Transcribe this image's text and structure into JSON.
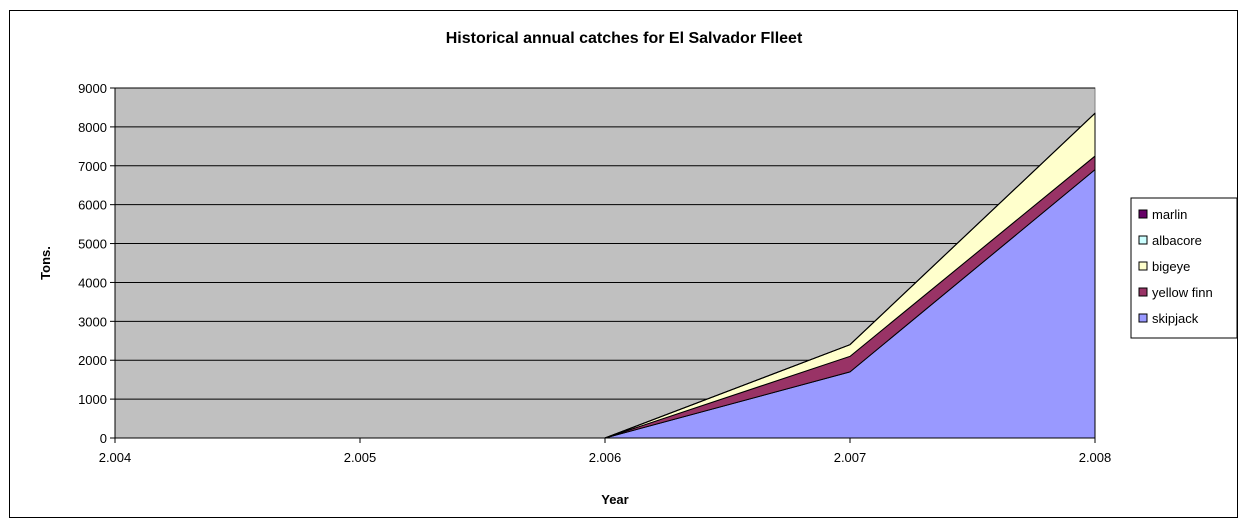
{
  "chart_data": {
    "type": "area",
    "stacked": true,
    "title": "Historical annual catches for El Salvador Flleet",
    "xlabel": "Year",
    "ylabel": "Tons.",
    "x": [
      2.004,
      2.005,
      2.006,
      2.007,
      2.008
    ],
    "x_tick_labels": [
      "2.004",
      "2.005",
      "2.006",
      "2.007",
      "2.008"
    ],
    "ylim": [
      0,
      9000
    ],
    "y_ticks": [
      0,
      1000,
      2000,
      3000,
      4000,
      5000,
      6000,
      7000,
      8000,
      9000
    ],
    "grid": true,
    "legend_position": "right",
    "plot_background": "#c0c0c0",
    "series": [
      {
        "name": "skipjack",
        "color": "#9999ff",
        "values": [
          0,
          0,
          0,
          1700,
          6900
        ]
      },
      {
        "name": "yellow finn",
        "color": "#993366",
        "values": [
          0,
          0,
          0,
          400,
          350
        ]
      },
      {
        "name": "bigeye",
        "color": "#ffffcc",
        "values": [
          0,
          0,
          0,
          300,
          1100
        ]
      },
      {
        "name": "albacore",
        "color": "#ccffff",
        "values": [
          0,
          0,
          0,
          0,
          0
        ]
      },
      {
        "name": "marlin",
        "color": "#660066",
        "values": [
          0,
          0,
          0,
          0,
          0
        ]
      }
    ],
    "legend_order": [
      "marlin",
      "albacore",
      "bigeye",
      "yellow finn",
      "skipjack"
    ]
  }
}
